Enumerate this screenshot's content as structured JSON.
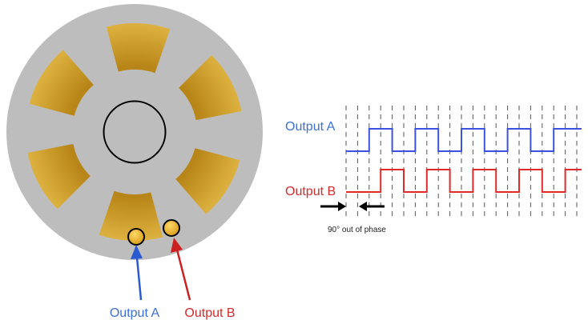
{
  "labels": {
    "waveform_output_a": "Output A",
    "waveform_output_b": "Output B",
    "phase_note": "90° out of phase",
    "sensor_output_a": "Output A",
    "sensor_output_b": "Output B"
  },
  "colors": {
    "disk": "#bdbdbd",
    "segment_gold": "#d8a62c",
    "segment_gold_dark": "#b5851a",
    "output_a": "#2b5ad0",
    "output_b": "#cc1f1f",
    "output_a_label": "#3d6fd6",
    "output_b_label": "#d42a2a",
    "grid_dash": "#555555",
    "arrow_black": "#000000"
  },
  "waveform": {
    "signal_a": [
      0,
      1,
      0,
      1,
      0,
      1,
      0,
      1,
      0,
      1,
      1
    ],
    "signal_b": [
      0,
      0,
      1,
      0,
      1,
      0,
      1,
      0,
      1,
      0,
      1
    ]
  }
}
